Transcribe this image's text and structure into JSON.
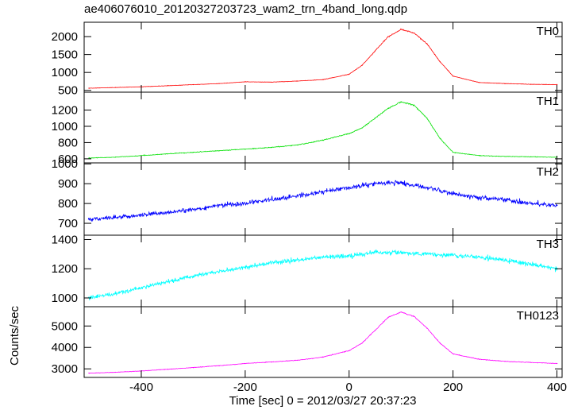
{
  "chart_data": [
    {
      "type": "line",
      "panel": "TH0",
      "color": "#ff0000",
      "ylim": [
        450,
        2400
      ],
      "yticks": [
        500,
        1000,
        1500,
        2000
      ],
      "xlim": [
        -510,
        410
      ],
      "x": [
        -500,
        -450,
        -400,
        -350,
        -300,
        -250,
        -200,
        -150,
        -100,
        -50,
        0,
        25,
        50,
        75,
        100,
        125,
        150,
        175,
        200,
        250,
        300,
        350,
        400
      ],
      "values": [
        560,
        580,
        600,
        630,
        660,
        690,
        740,
        730,
        760,
        800,
        950,
        1200,
        1600,
        2000,
        2200,
        2100,
        1800,
        1300,
        900,
        720,
        690,
        670,
        660
      ]
    },
    {
      "type": "line",
      "panel": "TH1",
      "color": "#00e000",
      "ylim": [
        550,
        1420
      ],
      "yticks": [
        600,
        800,
        1000,
        1200
      ],
      "xlim": [
        -510,
        410
      ],
      "x": [
        -500,
        -450,
        -400,
        -350,
        -300,
        -250,
        -200,
        -150,
        -100,
        -50,
        0,
        25,
        50,
        75,
        100,
        125,
        150,
        175,
        200,
        250,
        300,
        350,
        400
      ],
      "values": [
        610,
        620,
        640,
        660,
        680,
        700,
        720,
        740,
        770,
        830,
        910,
        980,
        1100,
        1220,
        1300,
        1260,
        1100,
        850,
        680,
        640,
        630,
        625,
        620
      ]
    },
    {
      "type": "line",
      "panel": "TH2",
      "color": "#0000ff",
      "ylim": [
        640,
        1005
      ],
      "yticks": [
        700,
        800,
        900,
        1000
      ],
      "xlim": [
        -510,
        410
      ],
      "x": [
        -500,
        -450,
        -400,
        -350,
        -300,
        -250,
        -200,
        -150,
        -100,
        -50,
        0,
        50,
        100,
        150,
        200,
        250,
        300,
        350,
        400
      ],
      "values": [
        720,
        730,
        740,
        755,
        770,
        790,
        800,
        820,
        840,
        860,
        880,
        900,
        905,
        880,
        850,
        830,
        820,
        800,
        790
      ]
    },
    {
      "type": "line",
      "panel": "TH3",
      "color": "#00ffff",
      "ylim": [
        940,
        1430
      ],
      "yticks": [
        1000,
        1200,
        1400
      ],
      "xlim": [
        -510,
        410
      ],
      "x": [
        -500,
        -450,
        -400,
        -350,
        -300,
        -250,
        -200,
        -150,
        -100,
        -50,
        0,
        50,
        100,
        150,
        200,
        250,
        300,
        350,
        400
      ],
      "values": [
        1000,
        1030,
        1070,
        1110,
        1150,
        1180,
        1210,
        1240,
        1260,
        1280,
        1290,
        1310,
        1310,
        1300,
        1290,
        1280,
        1260,
        1230,
        1200
      ]
    },
    {
      "type": "line",
      "panel": "TH0123",
      "color": "#ff00ff",
      "ylim": [
        2600,
        5900
      ],
      "yticks": [
        3000,
        4000,
        5000
      ],
      "xlim": [
        -510,
        410
      ],
      "x": [
        -500,
        -450,
        -400,
        -350,
        -300,
        -250,
        -200,
        -150,
        -100,
        -50,
        0,
        25,
        50,
        75,
        100,
        125,
        150,
        175,
        200,
        250,
        300,
        350,
        400
      ],
      "values": [
        2800,
        2840,
        2900,
        2980,
        3060,
        3150,
        3250,
        3320,
        3400,
        3550,
        3850,
        4200,
        4800,
        5400,
        5650,
        5450,
        4900,
        4200,
        3700,
        3450,
        3350,
        3300,
        3250
      ]
    }
  ],
  "title": "ae406076010_20120327203723_wam2_trn_4band_long.qdp",
  "ylabel": "Counts/sec",
  "xlabel": "Time [sec] 0 = 2012/03/27 20:37:23",
  "xticks": [
    -400,
    -200,
    0,
    200,
    400
  ]
}
